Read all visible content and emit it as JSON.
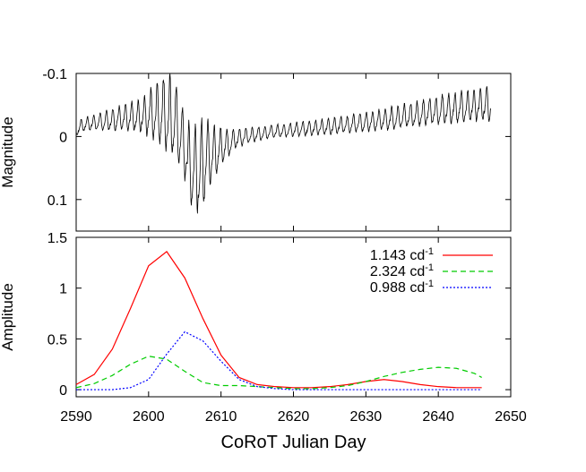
{
  "chart_data": [
    {
      "type": "line",
      "panel": "top",
      "xlabel": "",
      "ylabel": "Magnitude",
      "xlim": [
        2590,
        2650
      ],
      "ylim": [
        -0.1,
        0.15
      ],
      "y_inverted": true,
      "yticks": [
        {
          "value": -0.1,
          "label": "-0.1"
        },
        {
          "value": 0,
          "label": "0"
        },
        {
          "value": 0.1,
          "label": "0.1"
        }
      ],
      "series": [
        {
          "color": "#000000",
          "x": [
            2590.0,
            2591.0,
            2592.0,
            2593.0,
            2594.0,
            2595.0,
            2596.0,
            2597.0,
            2598.0,
            2599.0,
            2600.0,
            2601.0,
            2602.0,
            2603.0,
            2604.0,
            2605.0,
            2606.0,
            2607.0,
            2608.0,
            2609.0,
            2610.0,
            2611.0,
            2612.0,
            2614.0,
            2616.0,
            2618.0,
            2620.0,
            2622.0,
            2624.0,
            2626.0,
            2628.0,
            2630.0,
            2632.0,
            2634.0,
            2636.0,
            2638.0,
            2640.0,
            2642.0,
            2644.0,
            2646.0,
            2647.3
          ],
          "baseline": [
            -0.01,
            -0.018,
            -0.02,
            -0.022,
            -0.024,
            -0.025,
            -0.027,
            -0.029,
            -0.03,
            -0.032,
            -0.033,
            -0.034,
            -0.032,
            -0.028,
            -0.015,
            0.02,
            0.06,
            0.055,
            0.04,
            0.028,
            0.02,
            0.012,
            0.005,
            -0.001,
            -0.005,
            -0.008,
            -0.01,
            -0.012,
            -0.014,
            -0.016,
            -0.019,
            -0.022,
            -0.025,
            -0.028,
            -0.032,
            -0.036,
            -0.04,
            -0.043,
            -0.046,
            -0.048,
            -0.05
          ],
          "amplitude": [
            0.012,
            0.012,
            0.013,
            0.015,
            0.017,
            0.02,
            0.022,
            0.024,
            0.026,
            0.03,
            0.04,
            0.05,
            0.065,
            0.07,
            0.07,
            0.06,
            0.07,
            0.08,
            0.075,
            0.05,
            0.035,
            0.025,
            0.018,
            0.013,
            0.012,
            0.012,
            0.012,
            0.013,
            0.014,
            0.015,
            0.016,
            0.018,
            0.019,
            0.02,
            0.022,
            0.023,
            0.025,
            0.027,
            0.028,
            0.029,
            0.03
          ],
          "period": 0.875
        }
      ]
    },
    {
      "type": "line",
      "panel": "bottom",
      "xlabel": "CoRoT Julian Day",
      "ylabel": "Amplitude",
      "xlim": [
        2590,
        2650
      ],
      "ylim": [
        -0.07,
        1.5
      ],
      "xticks": [
        2590,
        2600,
        2610,
        2620,
        2630,
        2640,
        2650
      ],
      "yticks": [
        {
          "value": 0,
          "label": "0"
        },
        {
          "value": 0.5,
          "label": "0.5"
        },
        {
          "value": 1,
          "label": "1"
        },
        {
          "value": 1.5,
          "label": "1.5"
        }
      ],
      "legend_position": "top-right",
      "series": [
        {
          "name": "1.143 cd",
          "name_sup": "-1",
          "color": "#ff0000",
          "dash": "",
          "x": [
            2590,
            2592.5,
            2595,
            2597.5,
            2600,
            2602.5,
            2605,
            2607.5,
            2610,
            2612.5,
            2615,
            2617.5,
            2620,
            2622.5,
            2625,
            2627.5,
            2630,
            2632.5,
            2635,
            2637.5,
            2640,
            2642.5,
            2645,
            2646
          ],
          "y": [
            0.05,
            0.15,
            0.4,
            0.8,
            1.22,
            1.36,
            1.1,
            0.7,
            0.34,
            0.12,
            0.05,
            0.03,
            0.02,
            0.02,
            0.03,
            0.05,
            0.08,
            0.1,
            0.08,
            0.05,
            0.03,
            0.02,
            0.02,
            0.02
          ]
        },
        {
          "name": "2.324 cd",
          "name_sup": "-1",
          "color": "#00cc00",
          "dash": "6,4",
          "x": [
            2590,
            2592.5,
            2595,
            2597.5,
            2600,
            2602.5,
            2605,
            2607.5,
            2610,
            2612.5,
            2615,
            2617.5,
            2620,
            2622.5,
            2625,
            2627.5,
            2630,
            2632.5,
            2635,
            2637.5,
            2640,
            2642.5,
            2645,
            2646
          ],
          "y": [
            0.02,
            0.06,
            0.14,
            0.25,
            0.33,
            0.3,
            0.18,
            0.07,
            0.04,
            0.04,
            0.03,
            0.02,
            0.01,
            0.01,
            0.02,
            0.04,
            0.08,
            0.13,
            0.17,
            0.2,
            0.22,
            0.21,
            0.16,
            0.12
          ]
        },
        {
          "name": "0.988 cd",
          "name_sup": "-1",
          "color": "#0000ff",
          "dash": "2,2",
          "x": [
            2590,
            2592.5,
            2595,
            2597.5,
            2600,
            2602.5,
            2605,
            2607.5,
            2610,
            2612.5,
            2615,
            2617.5,
            2620,
            2622.5,
            2625,
            2627.5,
            2630,
            2632.5,
            2635,
            2637.5,
            2640,
            2642.5,
            2645,
            2646
          ],
          "y": [
            0.0,
            0.0,
            0.0,
            0.02,
            0.1,
            0.35,
            0.57,
            0.48,
            0.28,
            0.1,
            0.03,
            0.01,
            0.0,
            0.0,
            0.0,
            0.0,
            0.0,
            0.0,
            0.0,
            0.0,
            0.0,
            0.0,
            0.0,
            0.0
          ]
        }
      ]
    }
  ]
}
